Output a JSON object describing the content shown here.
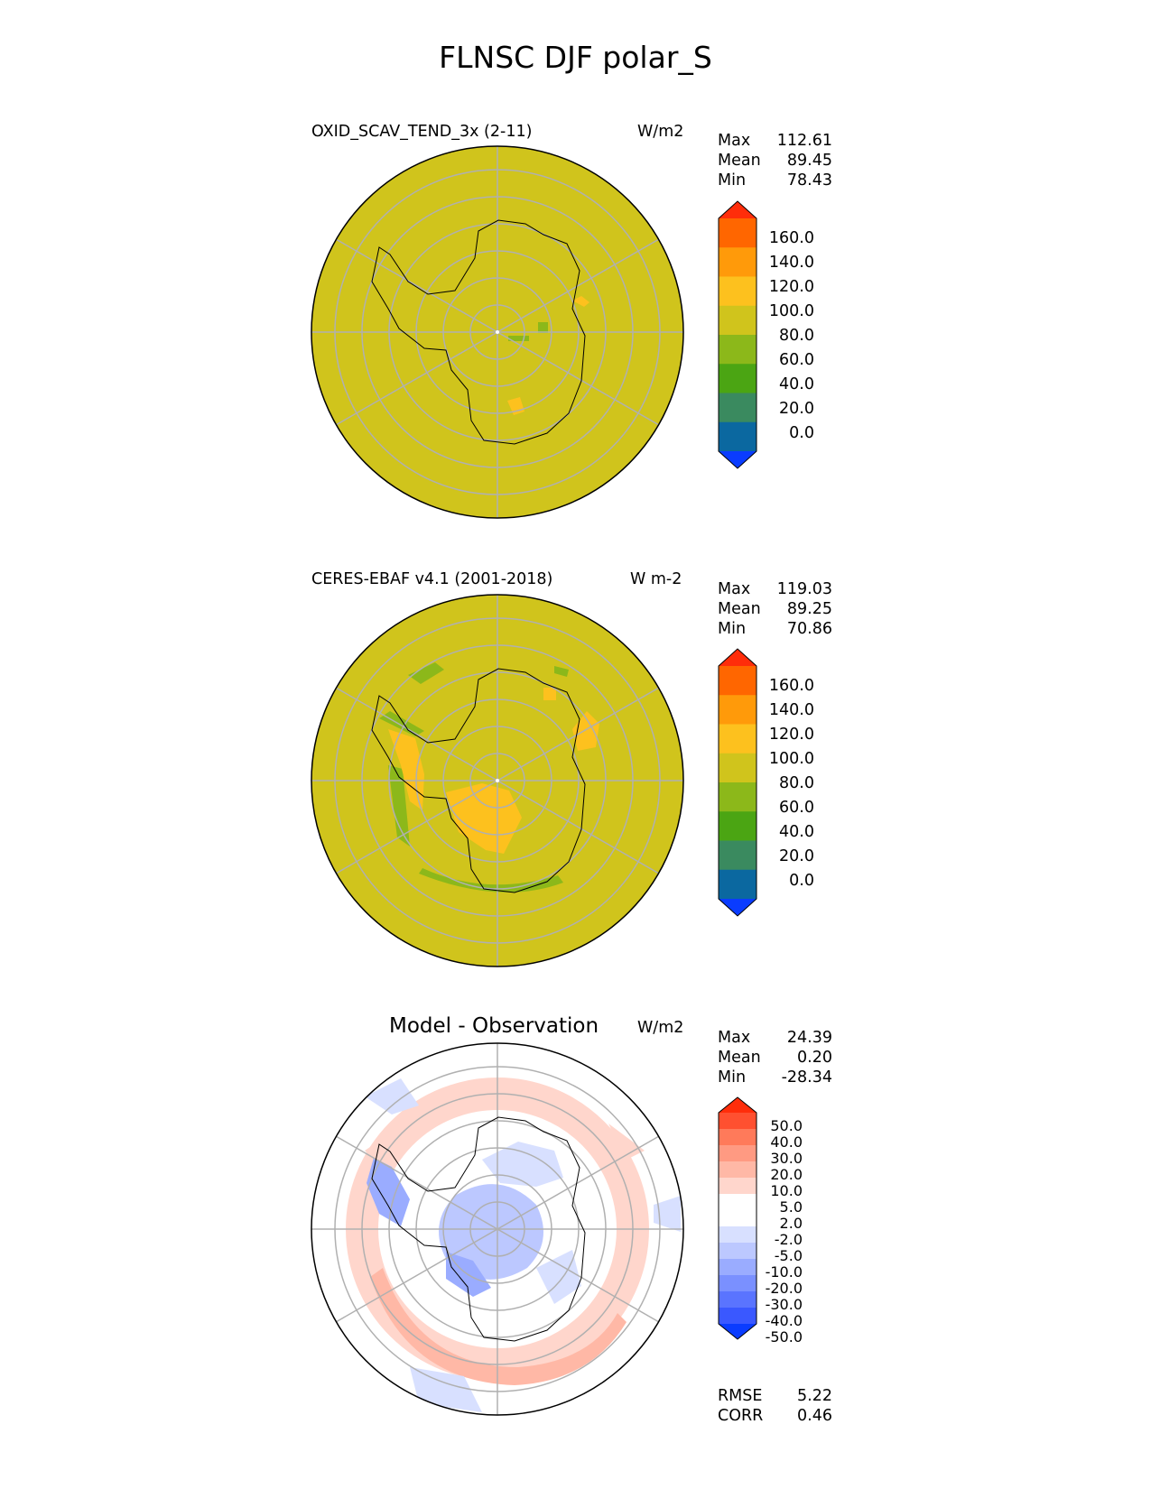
{
  "suptitle": "FLNSC DJF polar_S",
  "colors": {
    "background_field": "#d0c41c",
    "gridline": "#b0b0b0",
    "coast": "#000000"
  },
  "panels": [
    {
      "title": "OXID_SCAV_TEND_3x (2-11)",
      "units": "W/m2",
      "stats": [
        {
          "label": "Max",
          "value": "112.61"
        },
        {
          "label": "Mean",
          "value": "89.45"
        },
        {
          "label": "Min",
          "value": "78.43"
        }
      ],
      "colorbar": {
        "labels": [
          "160.0",
          "140.0",
          "120.0",
          "100.0",
          "80.0",
          "60.0",
          "40.0",
          "20.0",
          "0.0"
        ],
        "colors": [
          "#ff2d0a",
          "#ff6600",
          "#ff9a0a",
          "#fdc11e",
          "#d0c41c",
          "#8cb81a",
          "#4ba513",
          "#3a8a5f",
          "#0b68a0",
          "#0a3cff"
        ]
      }
    },
    {
      "title": "CERES-EBAF v4.1 (2001-2018)",
      "units": "W m-2",
      "stats": [
        {
          "label": "Max",
          "value": "119.03"
        },
        {
          "label": "Mean",
          "value": "89.25"
        },
        {
          "label": "Min",
          "value": "70.86"
        }
      ],
      "colorbar": {
        "labels": [
          "160.0",
          "140.0",
          "120.0",
          "100.0",
          "80.0",
          "60.0",
          "40.0",
          "20.0",
          "0.0"
        ],
        "colors": [
          "#ff2d0a",
          "#ff6600",
          "#ff9a0a",
          "#fdc11e",
          "#d0c41c",
          "#8cb81a",
          "#4ba513",
          "#3a8a5f",
          "#0b68a0",
          "#0a3cff"
        ]
      }
    },
    {
      "title": "Model - Observation",
      "units": "W/m2",
      "stats": [
        {
          "label": "Max",
          "value": "24.39"
        },
        {
          "label": "Mean",
          "value": "0.20"
        },
        {
          "label": "Min",
          "value": "-28.34"
        }
      ],
      "extra_stats": [
        {
          "label": "RMSE",
          "value": "5.22"
        },
        {
          "label": "CORR",
          "value": "0.46"
        }
      ],
      "colorbar": {
        "labels": [
          "50.0",
          "40.0",
          "30.0",
          "20.0",
          "10.0",
          "5.0",
          "2.0",
          "-2.0",
          "-5.0",
          "-10.0",
          "-20.0",
          "-30.0",
          "-40.0",
          "-50.0"
        ],
        "colors": [
          "#ff2d0a",
          "#ff5030",
          "#ff7a5a",
          "#ff9a82",
          "#ffb8a6",
          "#ffd6cc",
          "#ffffff",
          "#ffffff",
          "#d8e0ff",
          "#bcc8ff",
          "#9aacff",
          "#7a90ff",
          "#5a74ff",
          "#3a58ff",
          "#0a3cff"
        ]
      }
    }
  ]
}
